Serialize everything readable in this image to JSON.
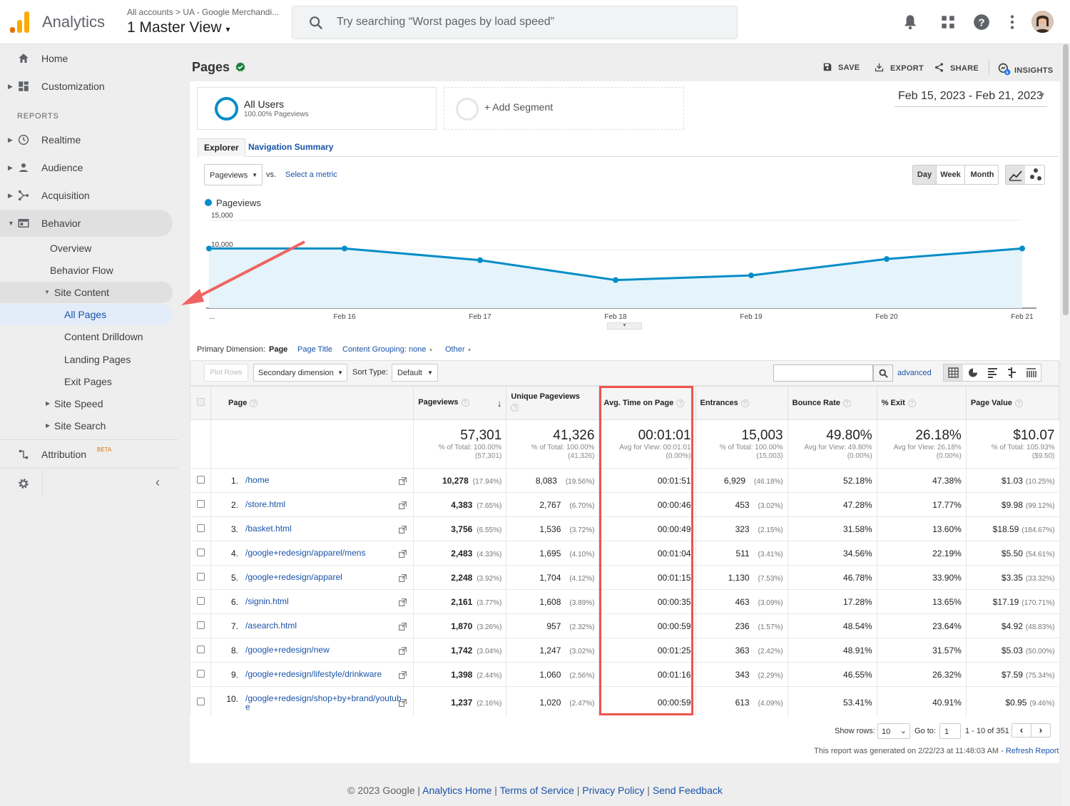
{
  "header": {
    "app_name": "Analytics",
    "account_crumb": "All accounts > UA - Google Merchandi...",
    "view_name": "1 Master View",
    "search_placeholder": "Try searching “Worst pages by load speed”"
  },
  "sidebar": {
    "home": "Home",
    "customization": "Customization",
    "reports_label": "REPORTS",
    "realtime": "Realtime",
    "audience": "Audience",
    "acquisition": "Acquisition",
    "behavior": "Behavior",
    "overview": "Overview",
    "behavior_flow": "Behavior Flow",
    "site_content": "Site Content",
    "all_pages": "All Pages",
    "content_drilldown": "Content Drilldown",
    "landing_pages": "Landing Pages",
    "exit_pages": "Exit Pages",
    "site_speed": "Site Speed",
    "site_search": "Site Search",
    "attribution": "Attribution",
    "beta": "BETA"
  },
  "report": {
    "title": "Pages",
    "actions": {
      "save": "SAVE",
      "export": "EXPORT",
      "share": "SHARE",
      "insights": "INSIGHTS"
    },
    "date_range": "Feb 15, 2023 - Feb 21, 2023",
    "segment_name": "All Users",
    "segment_sub": "100.00% Pageviews",
    "add_segment": "+ Add Segment",
    "tabs": {
      "explorer": "Explorer",
      "nav_summary": "Navigation Summary"
    },
    "metric_select": "Pageviews",
    "vs": "vs.",
    "select_metric": "Select a metric",
    "granularity": {
      "day": "Day",
      "week": "Week",
      "month": "Month"
    },
    "primary_dim_label": "Primary Dimension:",
    "dim_page": "Page",
    "dim_page_title": "Page Title",
    "dim_content_grouping": "Content Grouping: none",
    "dim_other": "Other",
    "plot_rows": "Plot Rows",
    "secondary_dim": "Secondary dimension",
    "sort_type_label": "Sort Type:",
    "sort_type_value": "Default",
    "advanced": "advanced",
    "show_rows_label": "Show rows:",
    "show_rows_value": "10",
    "goto_label": "Go to:",
    "goto_value": "1",
    "range_label": "1 - 10 of 351",
    "generated_note": "This report was generated on 2/22/23 at 11:48:03 AM - ",
    "refresh": "Refresh Report"
  },
  "chart_data": {
    "type": "line",
    "legend": "Pageviews",
    "x": [
      "Feb 15",
      "Feb 16",
      "Feb 17",
      "Feb 18",
      "Feb 19",
      "Feb 20",
      "Feb 21"
    ],
    "x_tick_labels": [
      "...",
      "Feb 16",
      "Feb 17",
      "Feb 18",
      "Feb 19",
      "Feb 20",
      "Feb 21"
    ],
    "series": [
      {
        "name": "Pageviews",
        "values": [
          10200,
          10200,
          8200,
          4800,
          5600,
          8400,
          10200
        ],
        "color": "#058dc7"
      }
    ],
    "y_ticks": [
      "15,000",
      "10,000",
      "5,000"
    ],
    "ylim": [
      0,
      15000
    ]
  },
  "table": {
    "headers": {
      "page": "Page",
      "pageviews": "Pageviews",
      "unique": "Unique Pageviews",
      "avg_time": "Avg. Time on Page",
      "entrances": "Entrances",
      "bounce": "Bounce Rate",
      "exit": "% Exit",
      "value": "Page Value"
    },
    "totals": {
      "pageviews": {
        "big": "57,301",
        "l1": "% of Total: 100.00%",
        "l2": "(57,301)"
      },
      "unique": {
        "big": "41,326",
        "l1": "% of Total: 100.00%",
        "l2": "(41,326)"
      },
      "avg_time": {
        "big": "00:01:01",
        "l1": "Avg for View: 00:01:01",
        "l2": "(0.00%)"
      },
      "entrances": {
        "big": "15,003",
        "l1": "% of Total: 100.00%",
        "l2": "(15,003)"
      },
      "bounce": {
        "big": "49.80%",
        "l1": "Avg for View: 49.80%",
        "l2": "(0.00%)"
      },
      "exit": {
        "big": "26.18%",
        "l1": "Avg for View: 26.18%",
        "l2": "(0.00%)"
      },
      "value": {
        "big": "$10.07",
        "l1": "% of Total: 105.93%",
        "l2": "($9.50)"
      }
    },
    "rows": [
      {
        "n": "1.",
        "page": "/home",
        "pv": "10,278",
        "pvp": "(17.94%)",
        "up": "8,083",
        "upp": "(19.56%)",
        "t": "00:01:51",
        "en": "6,929",
        "enp": "(46.18%)",
        "br": "52.18%",
        "ex": "47.38%",
        "val": "$1.03",
        "valp": "(10.25%)"
      },
      {
        "n": "2.",
        "page": "/store.html",
        "pv": "4,383",
        "pvp": "(7.65%)",
        "up": "2,767",
        "upp": "(6.70%)",
        "t": "00:00:46",
        "en": "453",
        "enp": "(3.02%)",
        "br": "47.28%",
        "ex": "17.77%",
        "val": "$9.98",
        "valp": "(99.12%)"
      },
      {
        "n": "3.",
        "page": "/basket.html",
        "pv": "3,756",
        "pvp": "(6.55%)",
        "up": "1,536",
        "upp": "(3.72%)",
        "t": "00:00:49",
        "en": "323",
        "enp": "(2.15%)",
        "br": "31.58%",
        "ex": "13.60%",
        "val": "$18.59",
        "valp": "(184.67%)"
      },
      {
        "n": "4.",
        "page": "/google+redesign/apparel/mens",
        "pv": "2,483",
        "pvp": "(4.33%)",
        "up": "1,695",
        "upp": "(4.10%)",
        "t": "00:01:04",
        "en": "511",
        "enp": "(3.41%)",
        "br": "34.56%",
        "ex": "22.19%",
        "val": "$5.50",
        "valp": "(54.61%)"
      },
      {
        "n": "5.",
        "page": "/google+redesign/apparel",
        "pv": "2,248",
        "pvp": "(3.92%)",
        "up": "1,704",
        "upp": "(4.12%)",
        "t": "00:01:15",
        "en": "1,130",
        "enp": "(7.53%)",
        "br": "46.78%",
        "ex": "33.90%",
        "val": "$3.35",
        "valp": "(33.32%)"
      },
      {
        "n": "6.",
        "page": "/signin.html",
        "pv": "2,161",
        "pvp": "(3.77%)",
        "up": "1,608",
        "upp": "(3.89%)",
        "t": "00:00:35",
        "en": "463",
        "enp": "(3.09%)",
        "br": "17.28%",
        "ex": "13.65%",
        "val": "$17.19",
        "valp": "(170.71%)"
      },
      {
        "n": "7.",
        "page": "/asearch.html",
        "pv": "1,870",
        "pvp": "(3.26%)",
        "up": "957",
        "upp": "(2.32%)",
        "t": "00:00:59",
        "en": "236",
        "enp": "(1.57%)",
        "br": "48.54%",
        "ex": "23.64%",
        "val": "$4.92",
        "valp": "(48.83%)"
      },
      {
        "n": "8.",
        "page": "/google+redesign/new",
        "pv": "1,742",
        "pvp": "(3.04%)",
        "up": "1,247",
        "upp": "(3.02%)",
        "t": "00:01:25",
        "en": "363",
        "enp": "(2.42%)",
        "br": "48.91%",
        "ex": "31.57%",
        "val": "$5.03",
        "valp": "(50.00%)"
      },
      {
        "n": "9.",
        "page": "/google+redesign/lifestyle/drinkware",
        "pv": "1,398",
        "pvp": "(2.44%)",
        "up": "1,060",
        "upp": "(2.56%)",
        "t": "00:01:16",
        "en": "343",
        "enp": "(2.29%)",
        "br": "46.55%",
        "ex": "26.32%",
        "val": "$7.59",
        "valp": "(75.34%)"
      },
      {
        "n": "10.",
        "page": "/google+redesign/shop+by+brand/youtube",
        "pv": "1,237",
        "pvp": "(2.16%)",
        "up": "1,020",
        "upp": "(2.47%)",
        "t": "00:00:59",
        "en": "613",
        "enp": "(4.09%)",
        "br": "53.41%",
        "ex": "40.91%",
        "val": "$0.95",
        "valp": "(9.46%)"
      }
    ]
  },
  "footer": {
    "copyright": "© 2023 Google | ",
    "links": [
      "Analytics Home",
      "Terms of Service",
      "Privacy Policy",
      "Send Feedback"
    ]
  }
}
